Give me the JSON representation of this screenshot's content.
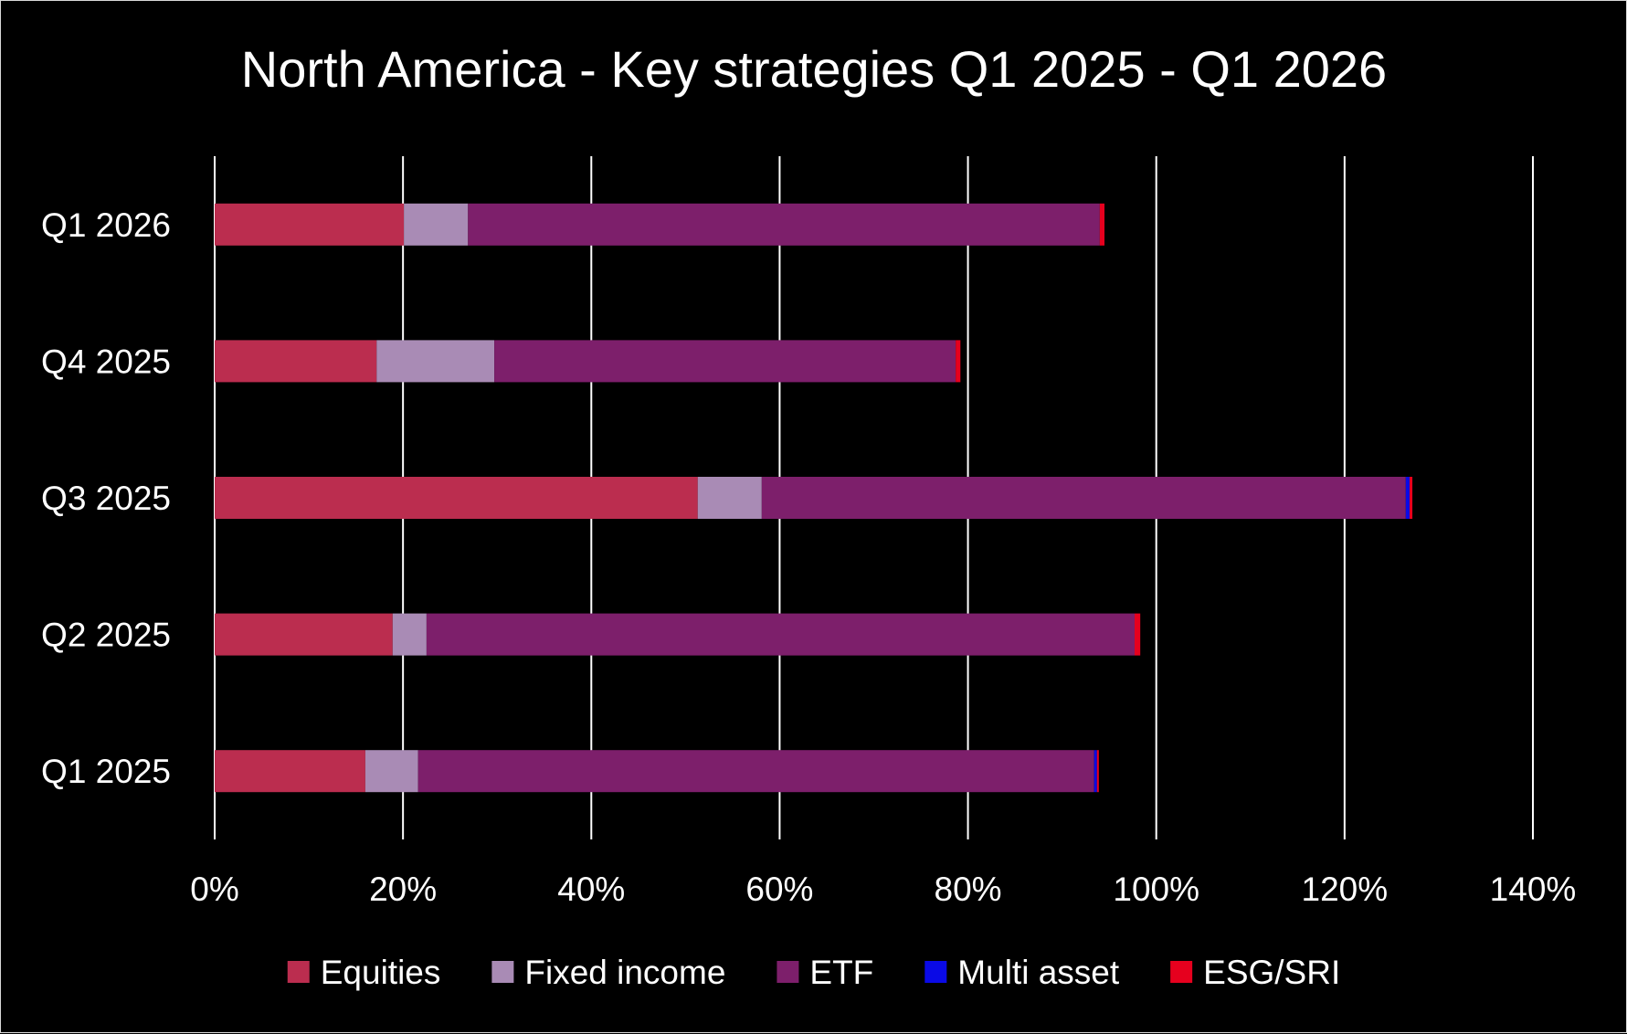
{
  "chart_data": {
    "type": "bar",
    "orientation": "horizontal",
    "stacked": true,
    "title": "North America - Key strategies Q1 2025 - Q1 2026",
    "xlabel": "",
    "ylabel": "",
    "categories": [
      "Q1 2026",
      "Q4 2025",
      "Q3 2025",
      "Q2 2025",
      "Q1 2025"
    ],
    "series": [
      {
        "name": "Equities",
        "color": "#bb2d4f",
        "values": [
          20.1,
          17.2,
          51.3,
          18.9,
          16.0
        ]
      },
      {
        "name": "Fixed income",
        "color": "#a98bb5",
        "values": [
          6.8,
          12.5,
          6.8,
          3.6,
          5.6
        ]
      },
      {
        "name": "ETF",
        "color": "#7d1f6b",
        "values": [
          67.1,
          49.0,
          68.4,
          75.2,
          71.8
        ]
      },
      {
        "name": "Multi asset",
        "color": "#0a0ae6",
        "values": [
          0.0,
          0.0,
          0.4,
          0.0,
          0.3
        ]
      },
      {
        "name": "ESG/SRI",
        "color": "#e6001e",
        "values": [
          0.5,
          0.5,
          0.3,
          0.6,
          0.2
        ]
      }
    ],
    "xlim": [
      0,
      140
    ],
    "xticks": [
      "0%",
      "20%",
      "40%",
      "60%",
      "80%",
      "100%",
      "120%",
      "140%"
    ],
    "grid": true,
    "legend_position": "bottom"
  }
}
